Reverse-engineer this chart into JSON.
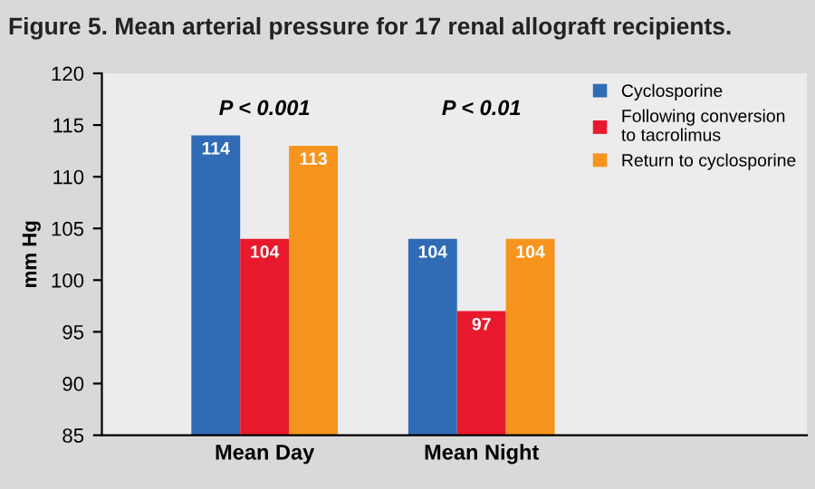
{
  "chart_data": {
    "type": "bar",
    "title": "Figure 5. Mean arterial pressure for 17 renal allograft recipients.",
    "ylabel": "mm Hg",
    "categories": [
      "Mean Day",
      "Mean Night"
    ],
    "series": [
      {
        "name": "Cyclosporine",
        "color": "#2f6cb5",
        "values": [
          114,
          104
        ]
      },
      {
        "name": "Following conversion\nto tacrolimus",
        "color": "#e8192c",
        "values": [
          104,
          97
        ]
      },
      {
        "name": "Return to cyclosporine",
        "color": "#f7941e",
        "values": [
          113,
          104
        ]
      }
    ],
    "ylim": [
      85,
      120
    ],
    "yticks": [
      85,
      90,
      95,
      100,
      105,
      110,
      115,
      120
    ],
    "annotations": [
      "P < 0.001",
      "P < 0.01"
    ],
    "data_labels": true,
    "grid": false,
    "legend": "top right"
  }
}
